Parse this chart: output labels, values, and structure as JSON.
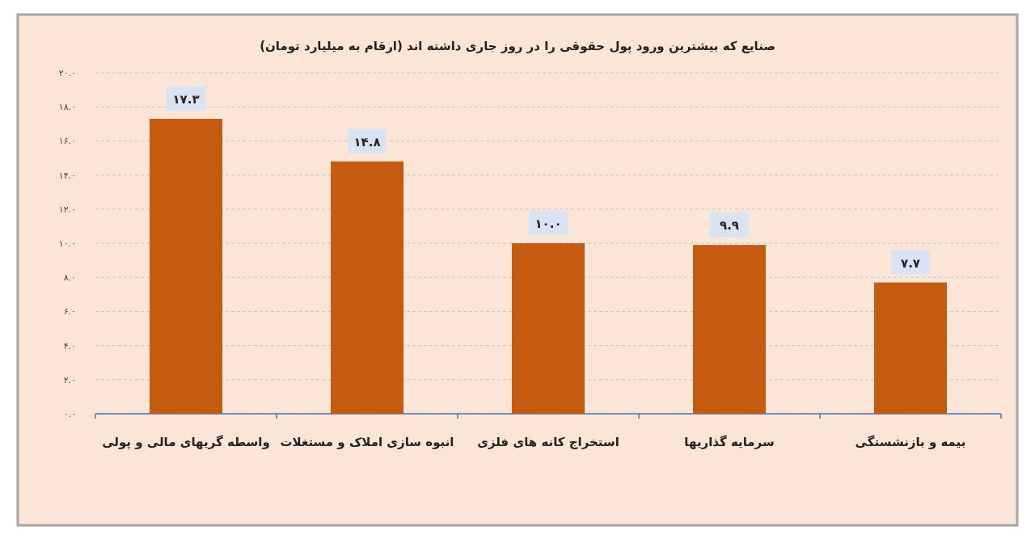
{
  "chart_data": {
    "type": "bar",
    "title": "صنایع که بیشترین ورود پول حقوقی را در روز جاری داشته اند (ارقام به میلیارد تومان)",
    "categories": [
      "واسطه گریهای مالی و پولی",
      "انبوه سازی املاک و مستغلات",
      "استخراج کانه های فلزی",
      "سرمایه گذاریها",
      "بیمه و بازنشستگی"
    ],
    "values": [
      17.3,
      14.8,
      10.0,
      9.9,
      7.7
    ],
    "value_labels": [
      "۱۷.۳",
      "۱۴.۸",
      "۱۰.۰",
      "۹.۹",
      "۷.۷"
    ],
    "color": "#c55a11",
    "ylim": [
      0,
      20
    ],
    "yticks": [
      {
        "value": 0,
        "label": "۰.۰"
      },
      {
        "value": 2,
        "label": "۲.۰"
      },
      {
        "value": 4,
        "label": "۴.۰"
      },
      {
        "value": 6,
        "label": "۶.۰"
      },
      {
        "value": 8,
        "label": "۸.۰"
      },
      {
        "value": 10,
        "label": "۱۰.۰"
      },
      {
        "value": 12,
        "label": "۱۲.۰"
      },
      {
        "value": 14,
        "label": "۱۴.۰"
      },
      {
        "value": 16,
        "label": "۱۶.۰"
      },
      {
        "value": 18,
        "label": "۱۸.۰"
      },
      {
        "value": 20,
        "label": "۲۰.۰"
      }
    ],
    "grid": "y"
  }
}
